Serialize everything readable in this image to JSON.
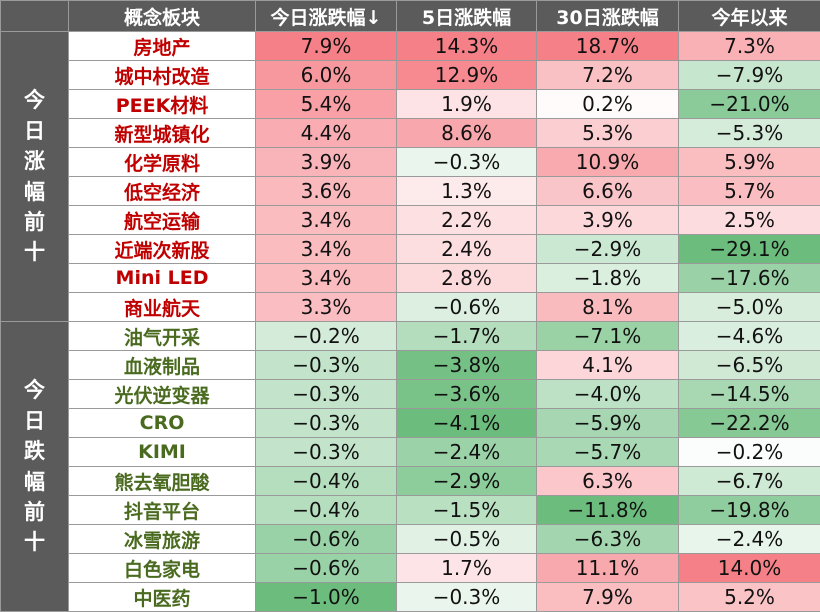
{
  "headers": [
    "概念板块",
    "今日涨跌幅↓",
    "5日涨跌幅",
    "30日涨跌幅",
    "今年以来"
  ],
  "colors": {
    "header_bg": "#5b5b5b",
    "gain_name": "#c00000",
    "loss_name": "#4a6b1f",
    "positive_scale": "#f4727a",
    "negative_scale": "#5bb56f"
  },
  "chart_data": {
    "type": "table",
    "columns": [
      "今日涨跌幅",
      "5日涨跌幅",
      "30日涨跌幅",
      "今年以来"
    ],
    "sections": [
      {
        "label": "今日涨幅前十",
        "rows": [
          {
            "name": "房地产",
            "values": [
              "7.9%",
              "14.3%",
              "18.7%",
              "7.3%"
            ]
          },
          {
            "name": "城中村改造",
            "values": [
              "6.0%",
              "12.9%",
              "7.2%",
              "−7.9%"
            ]
          },
          {
            "name": "PEEK材料",
            "values": [
              "5.4%",
              "1.9%",
              "0.2%",
              "−21.0%"
            ]
          },
          {
            "name": "新型城镇化",
            "values": [
              "4.4%",
              "8.6%",
              "5.3%",
              "−5.3%"
            ]
          },
          {
            "name": "化学原料",
            "values": [
              "3.9%",
              "−0.3%",
              "10.9%",
              "5.9%"
            ]
          },
          {
            "name": "低空经济",
            "values": [
              "3.6%",
              "1.3%",
              "6.6%",
              "5.7%"
            ]
          },
          {
            "name": "航空运输",
            "values": [
              "3.4%",
              "2.2%",
              "3.9%",
              "2.5%"
            ]
          },
          {
            "name": "近端次新股",
            "values": [
              "3.4%",
              "2.4%",
              "−2.9%",
              "−29.1%"
            ]
          },
          {
            "name": "Mini LED",
            "values": [
              "3.4%",
              "2.8%",
              "−1.8%",
              "−17.6%"
            ]
          },
          {
            "name": "商业航天",
            "values": [
              "3.3%",
              "−0.6%",
              "8.1%",
              "−5.0%"
            ]
          }
        ]
      },
      {
        "label": "今日跌幅前十",
        "rows": [
          {
            "name": "油气开采",
            "values": [
              "−0.2%",
              "−1.7%",
              "−7.1%",
              "−4.6%"
            ]
          },
          {
            "name": "血液制品",
            "values": [
              "−0.3%",
              "−3.8%",
              "4.1%",
              "−6.5%"
            ]
          },
          {
            "name": "光伏逆变器",
            "values": [
              "−0.3%",
              "−3.6%",
              "−4.0%",
              "−14.5%"
            ]
          },
          {
            "name": "CRO",
            "values": [
              "−0.3%",
              "−4.1%",
              "−5.9%",
              "−22.2%"
            ]
          },
          {
            "name": "KIMI",
            "values": [
              "−0.3%",
              "−2.4%",
              "−5.7%",
              "−0.2%"
            ]
          },
          {
            "name": "熊去氧胆酸",
            "values": [
              "−0.4%",
              "−2.9%",
              "6.3%",
              "−6.7%"
            ]
          },
          {
            "name": "抖音平台",
            "values": [
              "−0.4%",
              "−1.5%",
              "−11.8%",
              "−19.8%"
            ]
          },
          {
            "name": "冰雪旅游",
            "values": [
              "−0.6%",
              "−0.5%",
              "−6.3%",
              "−2.4%"
            ]
          },
          {
            "name": "白色家电",
            "values": [
              "−0.6%",
              "1.7%",
              "11.1%",
              "14.0%"
            ]
          },
          {
            "name": "中医药",
            "values": [
              "−1.0%",
              "−0.3%",
              "7.9%",
              "5.2%"
            ]
          }
        ]
      }
    ]
  }
}
